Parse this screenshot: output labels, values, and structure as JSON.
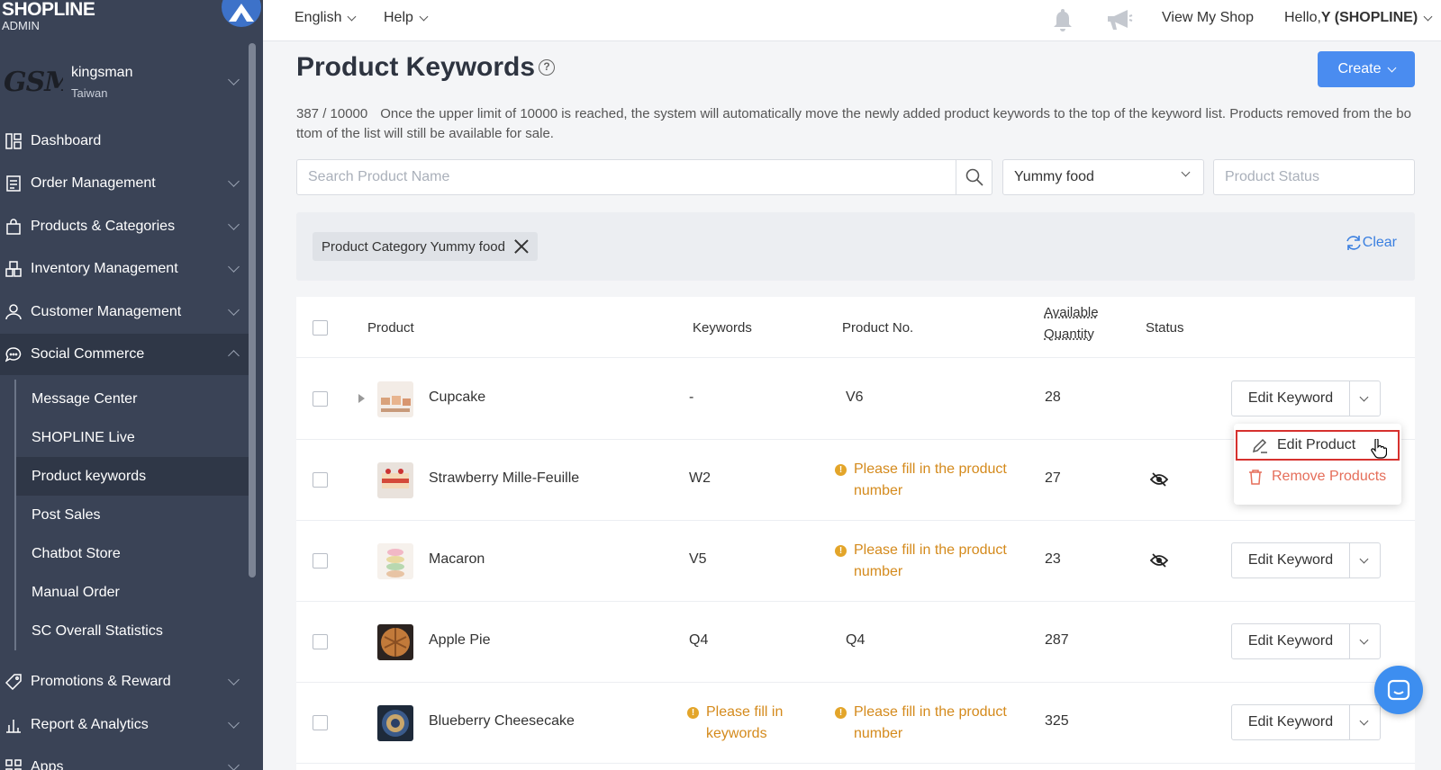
{
  "brand": {
    "name": "SHOPLINE",
    "sub": "ADMIN"
  },
  "shop": {
    "logo_text": "GSM",
    "name": "kingsman",
    "region": "Taiwan"
  },
  "sidebar": {
    "items": [
      {
        "label": "Dashboard",
        "icon": "dashboard-icon"
      },
      {
        "label": "Order Management",
        "icon": "order-icon"
      },
      {
        "label": "Products & Categories",
        "icon": "bag-icon"
      },
      {
        "label": "Inventory Management",
        "icon": "inventory-icon"
      },
      {
        "label": "Customer Management",
        "icon": "user-icon"
      },
      {
        "label": "Social Commerce",
        "icon": "chat-bubble-icon"
      },
      {
        "label": "Promotions & Reward",
        "icon": "tag-icon"
      },
      {
        "label": "Report & Analytics",
        "icon": "chart-icon"
      },
      {
        "label": "Apps",
        "icon": "apps-icon"
      }
    ],
    "sub_items": [
      {
        "label": "Message Center"
      },
      {
        "label": "SHOPLINE Live"
      },
      {
        "label": "Product keywords"
      },
      {
        "label": "Post Sales"
      },
      {
        "label": "Chatbot Store"
      },
      {
        "label": "Manual Order"
      },
      {
        "label": "SC Overall Statistics"
      }
    ]
  },
  "topbar": {
    "language": "English",
    "help": "Help",
    "view_shop": "View My Shop",
    "greeting_prefix": "Hello, ",
    "greeting_user": "Y (SHOPLINE)"
  },
  "page": {
    "title": "Product Keywords",
    "help_glyph": "?",
    "create_label": "Create",
    "count": "387 / 10000",
    "description": "Once the upper limit of 10000 is reached, the system will automatically move the newly added product keywords to the top of the keyword list. Products removed from the bottom of the list will still be available for sale."
  },
  "filters": {
    "search_placeholder": "Search Product Name",
    "category_value": "Yummy food",
    "status_placeholder": "Product Status",
    "chip_label": "Product Category Yummy food",
    "clear_label": "Clear"
  },
  "table": {
    "headers": {
      "product": "Product",
      "keywords": "Keywords",
      "product_no": "Product No.",
      "available_line1": "Available",
      "available_line2": "Quantity",
      "status": "Status"
    },
    "edit_keyword_label": "Edit Keyword",
    "rows": [
      {
        "name": "Cupcake",
        "keywords": "-",
        "product_no": "V6",
        "qty": "28"
      },
      {
        "name": "Strawberry Mille-Feuille",
        "keywords": "W2",
        "product_no_warn_1": "Please fill in the product",
        "product_no_warn_2": "number",
        "qty": "27"
      },
      {
        "name": "Macaron",
        "keywords": "V5",
        "product_no_warn_1": "Please fill in the product",
        "product_no_warn_2": "number",
        "qty": "23"
      },
      {
        "name": "Apple Pie",
        "keywords": "Q4",
        "product_no": "Q4",
        "qty": "287"
      },
      {
        "name": "Blueberry Cheesecake",
        "keywords_warn_1": "Please fill in",
        "keywords_warn_2": "keywords",
        "product_no_warn_1": "Please fill in the product",
        "product_no_warn_2": "number",
        "qty": "325"
      }
    ]
  },
  "dropdown": {
    "edit_product": "Edit Product",
    "remove_products": "Remove Products"
  },
  "colors": {
    "sidebar_bg": "#3a4356",
    "primary": "#4a8cf0",
    "warning": "#d48a1c",
    "danger": "#e56e5a",
    "highlight_box": "#d6312e"
  }
}
